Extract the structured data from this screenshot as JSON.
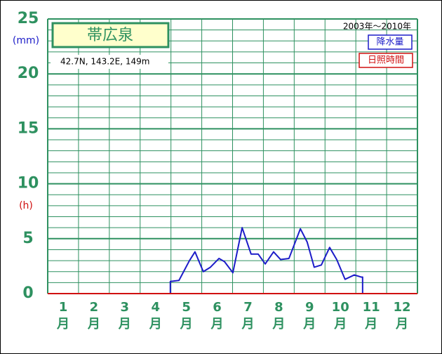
{
  "chart_data": {
    "type": "line",
    "station": "帯広泉",
    "location": "42.7N,  143.2E,  149m",
    "period": "2003年～2010年",
    "y_units": [
      {
        "label": "(mm)",
        "color": "#1c1cc8"
      },
      {
        "label": "(h)",
        "color": "#d01010"
      }
    ],
    "categories": [
      "1\n月",
      "2\n月",
      "3\n月",
      "4\n月",
      "5\n月",
      "6\n月",
      "7\n月",
      "8\n月",
      "9\n月",
      "10\n月",
      "11\n月",
      "12\n月"
    ],
    "xlim": [
      0,
      12
    ],
    "xticks": [
      0,
      1,
      2,
      3,
      4,
      5,
      6,
      7,
      8,
      9,
      10,
      11,
      12
    ],
    "ylim": [
      0,
      25
    ],
    "yticks": [
      0,
      5,
      10,
      15,
      20,
      25
    ],
    "minor_yticks": [
      1,
      2,
      3,
      4,
      6,
      7,
      8,
      9,
      11,
      12,
      13,
      14,
      16,
      17,
      18,
      19,
      21,
      22,
      23,
      24
    ],
    "grid": true,
    "series": [
      {
        "name": "降水量",
        "color": "#1c1cc8",
        "x": [
          3.98,
          3.98,
          4.26,
          4.6,
          4.78,
          5.05,
          5.28,
          5.56,
          5.74,
          6.01,
          6.31,
          6.6,
          6.83,
          7.06,
          7.33,
          7.56,
          7.83,
          8.2,
          8.42,
          8.65,
          8.88,
          9.15,
          9.38,
          9.65,
          9.95,
          10.18,
          10.22,
          10.22
        ],
        "values": [
          0,
          1.1,
          1.2,
          3.0,
          3.8,
          2.0,
          2.4,
          3.2,
          2.9,
          1.9,
          6.0,
          3.6,
          3.6,
          2.7,
          3.8,
          3.1,
          3.2,
          5.9,
          4.7,
          2.4,
          2.6,
          4.2,
          3.1,
          1.3,
          1.7,
          1.5,
          1.5,
          0
        ]
      },
      {
        "name": "日照時間",
        "color": "#d01010",
        "x": [
          0,
          12
        ],
        "values": [
          0,
          0
        ]
      }
    ]
  }
}
